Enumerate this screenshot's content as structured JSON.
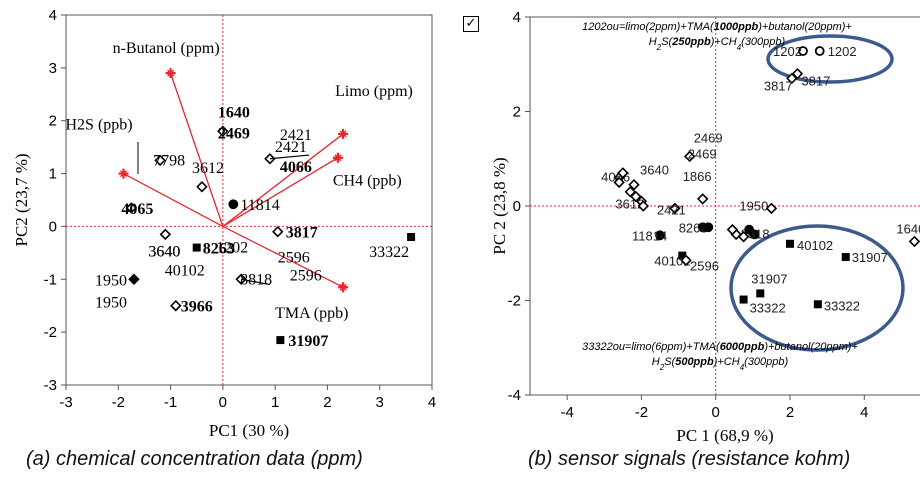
{
  "captions": {
    "a": "(a) chemical concentration data (ppm)",
    "b": "(b) sensor signals (resistance kohm)"
  },
  "colors": {
    "vector": "#e8242f",
    "star": "#e8242f",
    "axis_zero": "#e8242f",
    "ellipse": "#3b5b8f",
    "marker": "#000000"
  },
  "chart_data": [
    {
      "type": "scatter",
      "xlabel": "PC1  (30 %)",
      "ylabel": "PC2  (23,7 %)",
      "xlim": [
        -3,
        4
      ],
      "ylim": [
        -3,
        4
      ],
      "xticks": [
        "-3",
        "-2",
        "-1",
        "0",
        "1",
        "2",
        "3",
        "4"
      ],
      "yticks": [
        "-3",
        "-2",
        "-1",
        "0",
        "1",
        "2",
        "3",
        "4"
      ],
      "loading_vectors": [
        {
          "label": "n-Butanol (ppm)",
          "x": -1.0,
          "y": 2.9
        },
        {
          "label": "H2S (ppb)",
          "x": -1.9,
          "y": 1.0
        },
        {
          "label": "Limo (ppm)",
          "x": 2.3,
          "y": 1.75
        },
        {
          "label": "CH4 (ppb)",
          "x": 2.2,
          "y": 1.3
        },
        {
          "label": "TMA (ppb)",
          "x": 2.3,
          "y": -1.15
        }
      ],
      "points": [
        {
          "label": "1640",
          "x": 0.0,
          "y": 1.8,
          "marker": "diamond-open",
          "bold": true
        },
        {
          "label": "2469",
          "x": 0.0,
          "y": 1.8,
          "marker": "diamond-open",
          "bold": true
        },
        {
          "label": "2421",
          "x": 0.9,
          "y": 1.28,
          "marker": "diamond-open",
          "bold": false
        },
        {
          "label": "2421",
          "x": 0.9,
          "y": 1.28,
          "marker": "diamond-open",
          "bold": false
        },
        {
          "label": "4066",
          "x": 0.9,
          "y": 1.28,
          "marker": "diamond-open",
          "bold": true
        },
        {
          "label": "7798",
          "x": -1.2,
          "y": 1.25,
          "marker": "diamond-open",
          "bold": false
        },
        {
          "label": "3612",
          "x": -0.4,
          "y": 0.75,
          "marker": "diamond-open",
          "bold": false
        },
        {
          "label": "11814",
          "x": 0.2,
          "y": 0.42,
          "marker": "circle-filled",
          "bold": false
        },
        {
          "label": "4065",
          "x": -1.75,
          "y": 0.35,
          "marker": "diamond-open",
          "bold": true
        },
        {
          "label": "3817",
          "x": 1.05,
          "y": -0.1,
          "marker": "diamond-open",
          "bold": true
        },
        {
          "label": "2596",
          "x": 1.05,
          "y": -0.1,
          "marker": "diamond-open",
          "bold": false
        },
        {
          "label": "2596",
          "x": 1.05,
          "y": -0.1,
          "marker": "diamond-open",
          "bold": false
        },
        {
          "label": "3640",
          "x": -1.1,
          "y": -0.15,
          "marker": "diamond-open",
          "bold": false
        },
        {
          "label": "3640",
          "x": -1.1,
          "y": -0.15,
          "marker": "diamond-open",
          "bold": false
        },
        {
          "label": "33322",
          "x": 3.6,
          "y": -0.2,
          "marker": "square-filled",
          "bold": false
        },
        {
          "label": "8263",
          "x": -0.5,
          "y": -0.4,
          "marker": "square-filled",
          "bold": true
        },
        {
          "label": "40102",
          "x": -0.5,
          "y": -0.4,
          "marker": "square-filled",
          "bold": false
        },
        {
          "label": "1202",
          "x": 0.35,
          "y": -1.0,
          "marker": "diamond-open",
          "bold": false
        },
        {
          "label": "8818",
          "x": 0.35,
          "y": -1.0,
          "marker": "diamond-open",
          "bold": false
        },
        {
          "label": "1950",
          "x": -1.7,
          "y": -1.0,
          "marker": "diamond-filled",
          "bold": false
        },
        {
          "label": "1950",
          "x": -1.7,
          "y": -1.0,
          "marker": "diamond-filled",
          "bold": false
        },
        {
          "label": "3966",
          "x": -0.9,
          "y": -1.5,
          "marker": "diamond-open",
          "bold": true
        },
        {
          "label": "31907",
          "x": 1.1,
          "y": -2.15,
          "marker": "square-filled",
          "bold": true
        }
      ]
    },
    {
      "type": "scatter",
      "xlabel": "PC 1  (68,9 %)",
      "ylabel": "PC 2  (23,8 %)",
      "xlim": [
        -5,
        5.5
      ],
      "ylim": [
        -4,
        4
      ],
      "xticks": [
        "-4",
        "-2",
        "0",
        "2",
        "4"
      ],
      "yticks": [
        "-4",
        "-2",
        "0",
        "2",
        "4"
      ],
      "annotations": [
        {
          "lines": [
            [
              "1202ou=limo(2ppm)+TMA(",
              "1000ppb",
              ")+butanol(20ppm)+"
            ],
            [
              "H",
              "2",
              "S(",
              "250ppb",
              ")+CH",
              "4",
              "(300ppb)"
            ]
          ]
        },
        {
          "lines": [
            [
              "33322ou=limo(6ppm)+TMA(",
              "6000ppb",
              ")+butanol(20ppm)+"
            ],
            [
              "H",
              "2",
              "S(",
              "500ppb",
              ")+CH",
              "4",
              "(300ppb)"
            ]
          ]
        }
      ],
      "points": [
        {
          "label": "1202",
          "x": 2.35,
          "y": 3.28,
          "marker": "circle-open"
        },
        {
          "label": "1202",
          "x": 2.8,
          "y": 3.28,
          "marker": "circle-open"
        },
        {
          "label": "3817",
          "x": 2.05,
          "y": 2.7,
          "marker": "diamond-open"
        },
        {
          "label": "3817",
          "x": 2.2,
          "y": 2.8,
          "marker": "diamond-open"
        },
        {
          "label": "2469",
          "x": -0.7,
          "y": 1.05,
          "marker": "diamond-open"
        },
        {
          "label": "2469",
          "x": -0.7,
          "y": 1.05,
          "marker": "diamond-open"
        },
        {
          "label": "4066",
          "x": -2.6,
          "y": 0.6,
          "marker": "diamond-open"
        },
        {
          "label": "3640",
          "x": -2.2,
          "y": 0.45,
          "marker": "diamond-open"
        },
        {
          "label": "1866",
          "x": -0.35,
          "y": 0.15,
          "marker": "diamond-open"
        },
        {
          "label": "1950",
          "x": 1.5,
          "y": -0.05,
          "marker": "diamond-open"
        },
        {
          "label": "3612",
          "x": -2.0,
          "y": 0.1,
          "marker": "diamond-open"
        },
        {
          "label": "2421",
          "x": -1.1,
          "y": -0.05,
          "marker": "diamond-open"
        },
        {
          "label": "11814",
          "x": -1.5,
          "y": -0.62,
          "marker": "circle-filled"
        },
        {
          "label": "8263",
          "x": -0.35,
          "y": -0.45,
          "marker": "circle-filled"
        },
        {
          "label": "8818",
          "x": 1.05,
          "y": -0.6,
          "marker": "circle-filled"
        },
        {
          "label": "40102",
          "x": 2.0,
          "y": -0.8,
          "marker": "square-filled"
        },
        {
          "label": "40102",
          "x": -0.9,
          "y": -1.05,
          "marker": "square-filled"
        },
        {
          "label": "2596",
          "x": -0.8,
          "y": -1.15,
          "marker": "diamond-open"
        },
        {
          "label": "1640",
          "x": 5.35,
          "y": -0.75,
          "marker": "diamond-open"
        },
        {
          "label": "31907",
          "x": 3.5,
          "y": -1.08,
          "marker": "square-filled"
        },
        {
          "label": "31907",
          "x": 1.2,
          "y": -1.85,
          "marker": "square-filled"
        },
        {
          "label": "33322",
          "x": 0.75,
          "y": -1.98,
          "marker": "square-filled"
        },
        {
          "label": "33322",
          "x": 2.75,
          "y": -2.08,
          "marker": "square-filled"
        }
      ]
    }
  ]
}
